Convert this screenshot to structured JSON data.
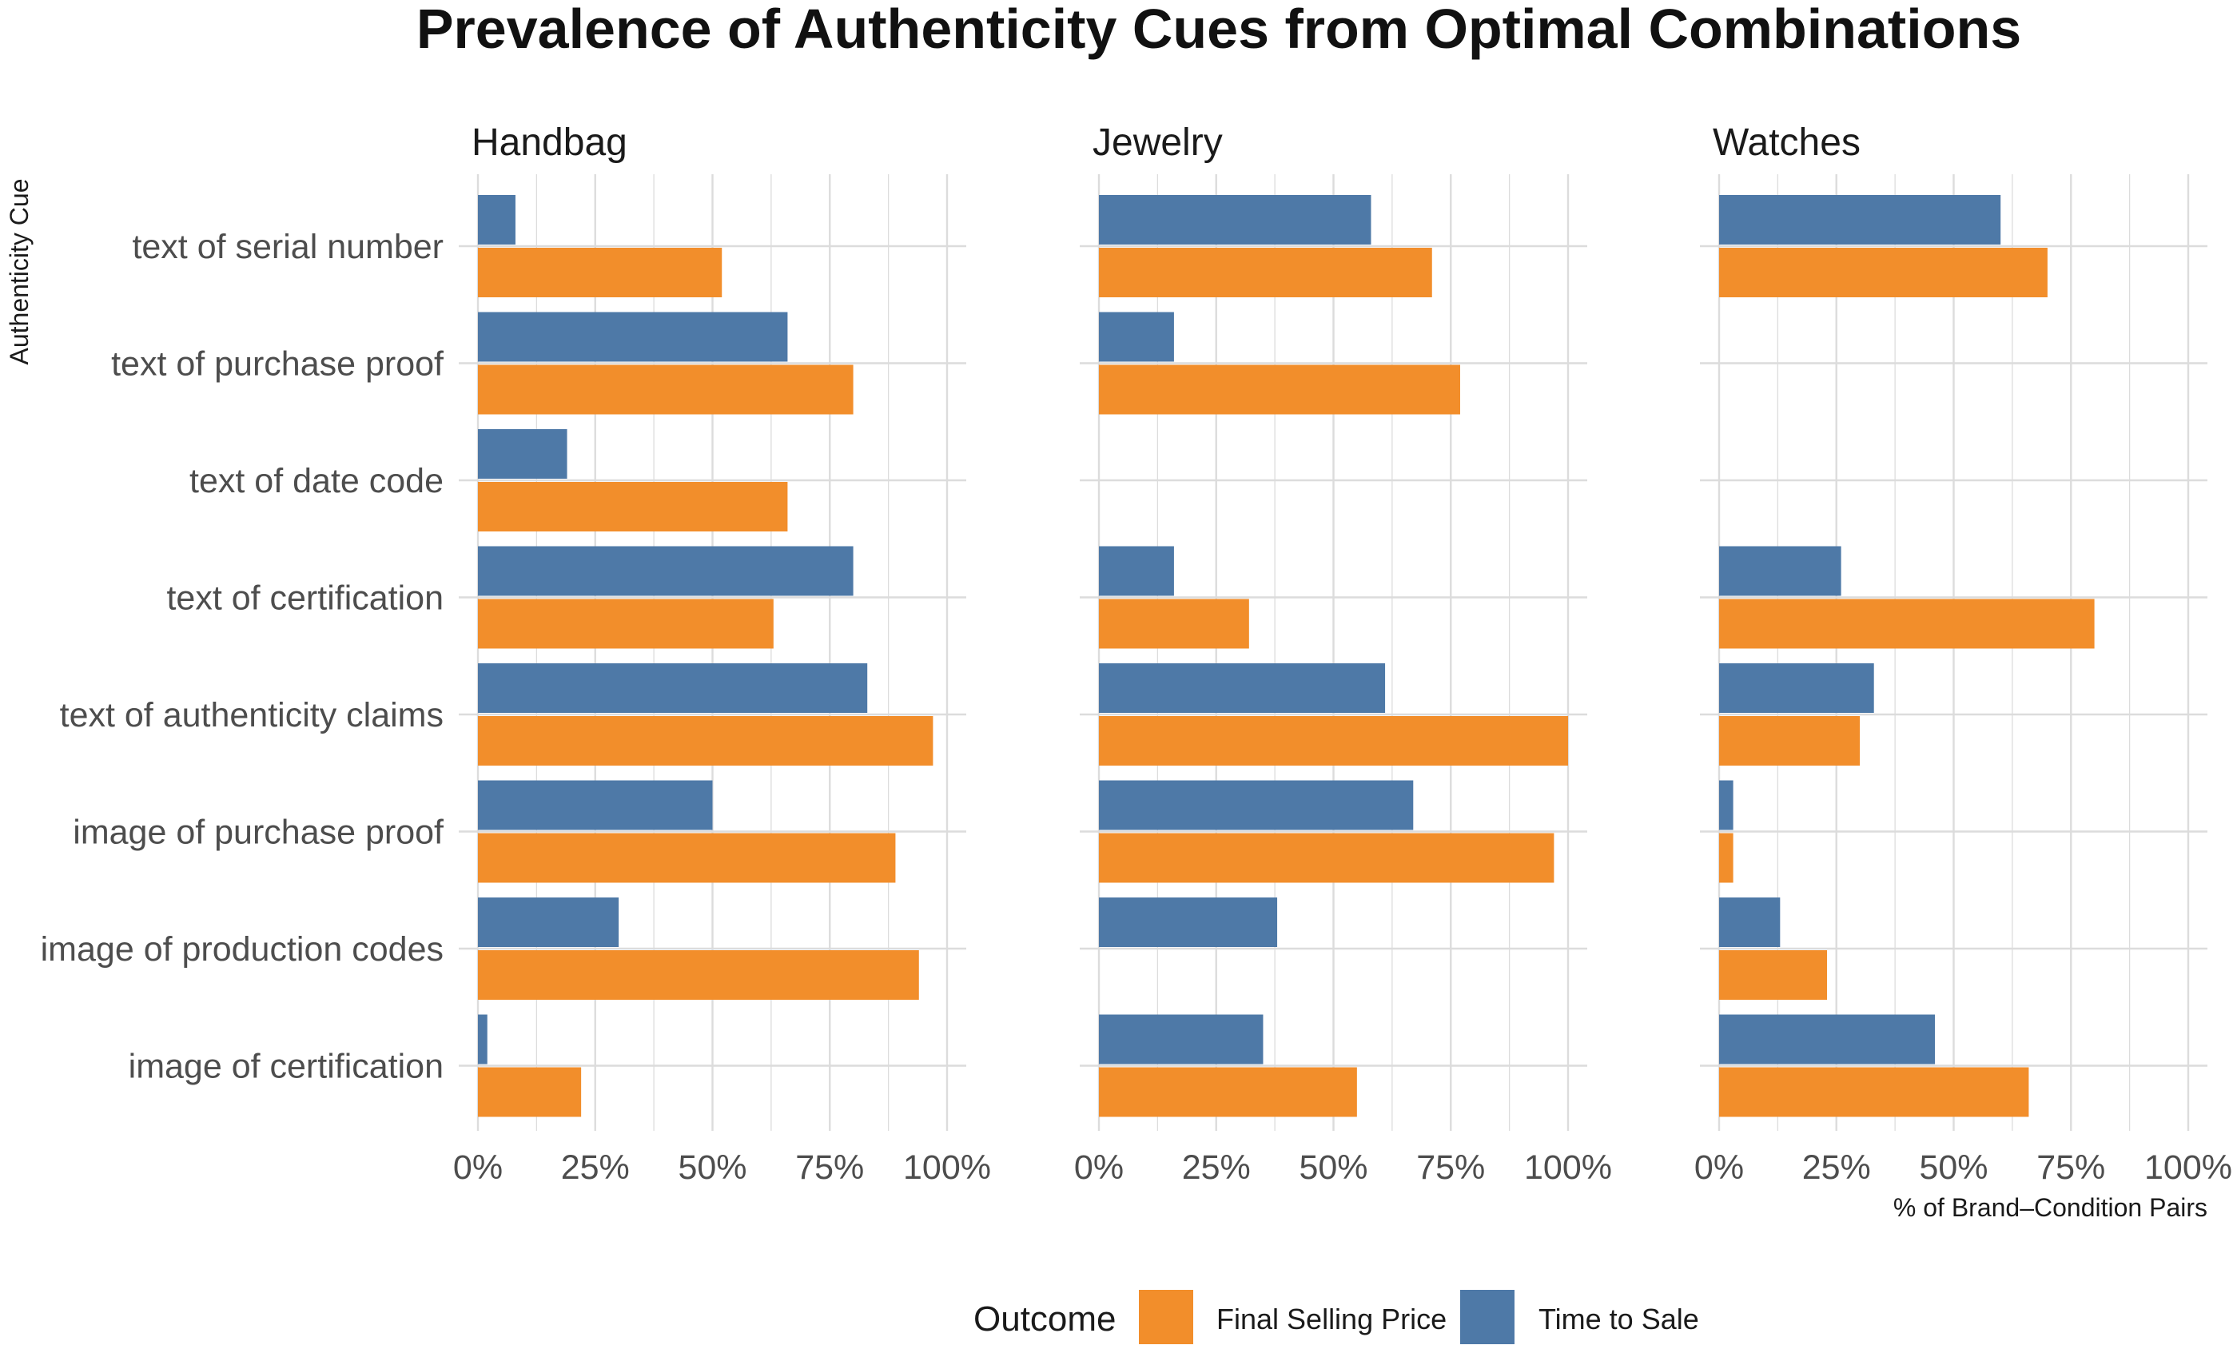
{
  "chart_data": {
    "type": "bar",
    "orientation": "horizontal",
    "title": "Prevalence of Authenticity Cues from Optimal Combinations",
    "ylabel": "Authenticity Cue",
    "xlabel": "% of Brand–Condition Pairs",
    "xlim": [
      0,
      100
    ],
    "x_ticks": [
      "0%",
      "25%",
      "50%",
      "75%",
      "100%"
    ],
    "grid": true,
    "legend_position": "bottom",
    "legend_title": "Outcome",
    "categories": [
      "text of serial number",
      "text of purchase proof",
      "text of date code",
      "text of certification",
      "text of authenticity claims",
      "image of purchase proof",
      "image of production codes",
      "image of certification"
    ],
    "series_styles": [
      {
        "name": "Final Selling Price",
        "color": "#F28E2B"
      },
      {
        "name": "Time to Sale",
        "color": "#4E79A7"
      }
    ],
    "facets": [
      {
        "name": "Handbag",
        "series": [
          {
            "name": "Time to Sale",
            "values": [
              8,
              66,
              19,
              80,
              83,
              50,
              30,
              2
            ]
          },
          {
            "name": "Final Selling Price",
            "values": [
              52,
              80,
              66,
              63,
              97,
              89,
              94,
              22
            ]
          }
        ]
      },
      {
        "name": "Jewelry",
        "series": [
          {
            "name": "Time to Sale",
            "values": [
              58,
              16,
              null,
              16,
              61,
              67,
              38,
              35
            ]
          },
          {
            "name": "Final Selling Price",
            "values": [
              71,
              77,
              null,
              32,
              100,
              97,
              null,
              55
            ]
          }
        ]
      },
      {
        "name": "Watches",
        "series": [
          {
            "name": "Time to Sale",
            "values": [
              60,
              null,
              null,
              26,
              33,
              3,
              13,
              46
            ]
          },
          {
            "name": "Final Selling Price",
            "values": [
              70,
              null,
              null,
              80,
              30,
              3,
              23,
              66
            ]
          }
        ]
      }
    ]
  }
}
